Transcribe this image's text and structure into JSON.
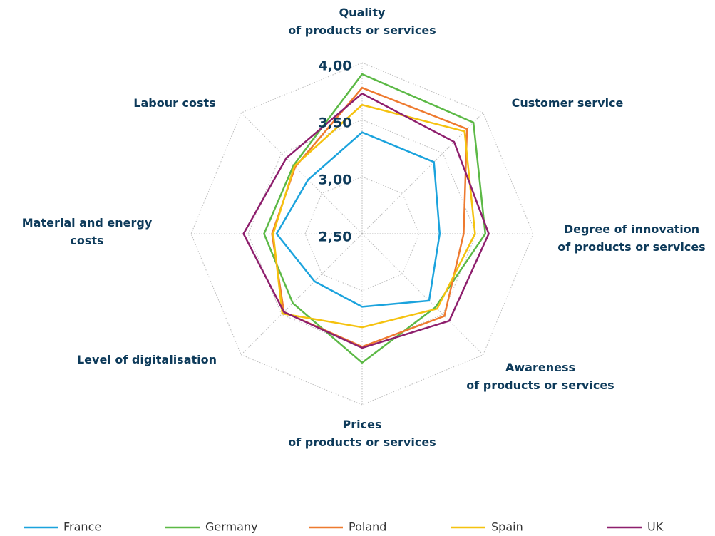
{
  "chart_data": {
    "type": "radar",
    "categories": [
      "Quality\nof products or services",
      "Customer service",
      "Degree of innovation\nof products or services",
      "Awareness\nof products or services",
      "Prices\nof products or services",
      "Level of digitalisation",
      "Material and energy\ncosts",
      "Labour costs"
    ],
    "rlim": [
      2.5,
      4.0
    ],
    "rticks": [
      {
        "value": 2.5,
        "label": "2,50"
      },
      {
        "value": 3.0,
        "label": "3,00"
      },
      {
        "value": 3.5,
        "label": "3,50"
      },
      {
        "value": 4.0,
        "label": "4,00"
      }
    ],
    "grid": true,
    "legend": "bottom",
    "series": [
      {
        "name": "France",
        "color": "#1ba3dd",
        "values": [
          3.39,
          3.39,
          3.18,
          3.33,
          3.14,
          3.09,
          3.25,
          3.17
        ]
      },
      {
        "name": "Germany",
        "color": "#5cb946",
        "values": [
          3.9,
          3.88,
          3.58,
          3.41,
          3.63,
          3.36,
          3.36,
          3.35
        ]
      },
      {
        "name": "Poland",
        "color": "#ee7a2f",
        "values": [
          3.78,
          3.8,
          3.39,
          3.52,
          3.49,
          3.47,
          3.29,
          3.33
        ]
      },
      {
        "name": "Spain",
        "color": "#f5c20f",
        "values": [
          3.63,
          3.77,
          3.49,
          3.43,
          3.32,
          3.49,
          3.28,
          3.34
        ]
      },
      {
        "name": "UK",
        "color": "#8e1f6d",
        "values": [
          3.73,
          3.64,
          3.61,
          3.58,
          3.5,
          3.47,
          3.54,
          3.44
        ]
      }
    ]
  }
}
